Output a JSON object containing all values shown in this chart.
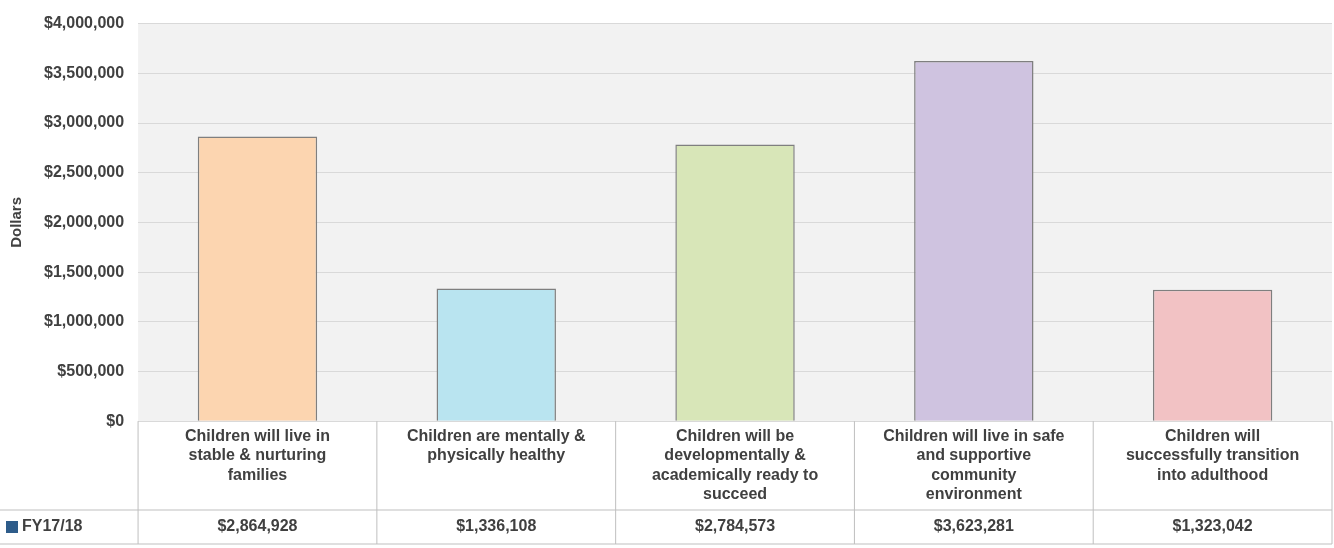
{
  "chart_data": {
    "type": "bar",
    "ylabel": "Dollars",
    "categories": [
      "Children will live in stable & nurturing families",
      "Children are mentally & physically healthy",
      "Children will be developmentally & academically ready to succeed",
      "Children will live in safe and supportive community environment",
      "Children will successfully transition into adulthood"
    ],
    "series": [
      {
        "name": "FY17/18",
        "color": "#2e5c8a",
        "colors": [
          "#fcd5b0",
          "#b9e4f0",
          "#d8e6b8",
          "#cfc3e0",
          "#f2c2c4"
        ],
        "values": [
          2864928,
          1336108,
          2784573,
          3623281,
          1323042
        ],
        "value_labels": [
          "$2,864,928",
          "$1,336,108",
          "$2,784,573",
          "$3,623,281",
          "$1,323,042"
        ]
      }
    ],
    "ylim": [
      0,
      4000000
    ],
    "yticks": [
      {
        "value": 0,
        "label": "$0"
      },
      {
        "value": 500000,
        "label": "$500,000"
      },
      {
        "value": 1000000,
        "label": "$1,000,000"
      },
      {
        "value": 1500000,
        "label": "$1,500,000"
      },
      {
        "value": 2000000,
        "label": "$2,000,000"
      },
      {
        "value": 2500000,
        "label": "$2,500,000"
      },
      {
        "value": 3000000,
        "label": "$3,000,000"
      },
      {
        "value": 3500000,
        "label": "$3,500,000"
      },
      {
        "value": 4000000,
        "label": "$4,000,000"
      }
    ],
    "grid": "y",
    "legend": "bottom"
  }
}
